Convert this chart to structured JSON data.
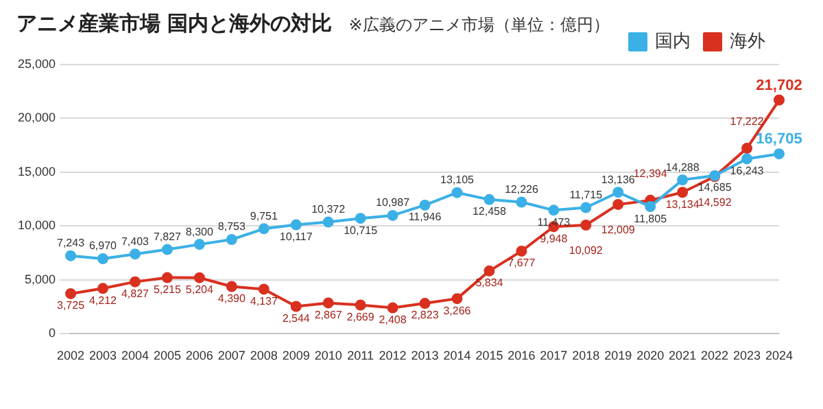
{
  "chart_data": {
    "type": "line",
    "title": "アニメ産業市場 国内と海外の対比",
    "subtitle": "※広義のアニメ市場（単位：億円）",
    "categories": [
      "2002",
      "2003",
      "2004",
      "2005",
      "2006",
      "2007",
      "2008",
      "2009",
      "2010",
      "2011",
      "2012",
      "2013",
      "2014",
      "2015",
      "2016",
      "2017",
      "2018",
      "2019",
      "2020",
      "2021",
      "2022",
      "2023",
      "2024"
    ],
    "series": [
      {
        "name": "国内",
        "color": "#3bb0e6",
        "values": [
          7243,
          6970,
          7403,
          7827,
          8300,
          8753,
          9751,
          10117,
          10372,
          10715,
          10987,
          11946,
          13105,
          12458,
          12226,
          11473,
          11715,
          13136,
          11805,
          14288,
          14685,
          16243,
          16705
        ],
        "value_labels": [
          "7,243",
          "6,970",
          "7,403",
          "7,827",
          "8,300",
          "8,753",
          "9,751",
          "10,117",
          "10,372",
          "10,715",
          "10,987",
          "11,946",
          "13,105",
          "12,458",
          "12,226",
          "11,473",
          "11,715",
          "13,136",
          "11,805",
          "14,288",
          "14,685",
          "16,243",
          "16,705"
        ]
      },
      {
        "name": "海外",
        "color": "#d9301f",
        "values": [
          3725,
          4212,
          4827,
          5215,
          5204,
          4390,
          4137,
          2544,
          2867,
          2669,
          2408,
          2823,
          3266,
          5834,
          7677,
          9948,
          10092,
          12009,
          12394,
          13134,
          14592,
          17222,
          21702
        ],
        "value_labels": [
          "3,725",
          "4,212",
          "4,827",
          "5,215",
          "5,204",
          "4,390",
          "4,137",
          "2,544",
          "2,867",
          "2,669",
          "2,408",
          "2,823",
          "3,266",
          "5,834",
          "7,677",
          "9,948",
          "10,092",
          "12,009",
          "12,394",
          "13,134",
          "14,592",
          "17,222",
          "21,702"
        ]
      }
    ],
    "ylim": [
      0,
      25000
    ],
    "yticks": [
      0,
      {
        "value": 5000,
        "label": "5,000"
      },
      {
        "value": 10000,
        "label": "10,000"
      },
      {
        "value": 15000,
        "label": "15,000"
      },
      {
        "value": 20000,
        "label": "20,000"
      },
      {
        "value": 25000,
        "label": "25,000"
      }
    ],
    "grid": "y",
    "legend": "top right",
    "marker": "circle",
    "line_style": "solid"
  }
}
